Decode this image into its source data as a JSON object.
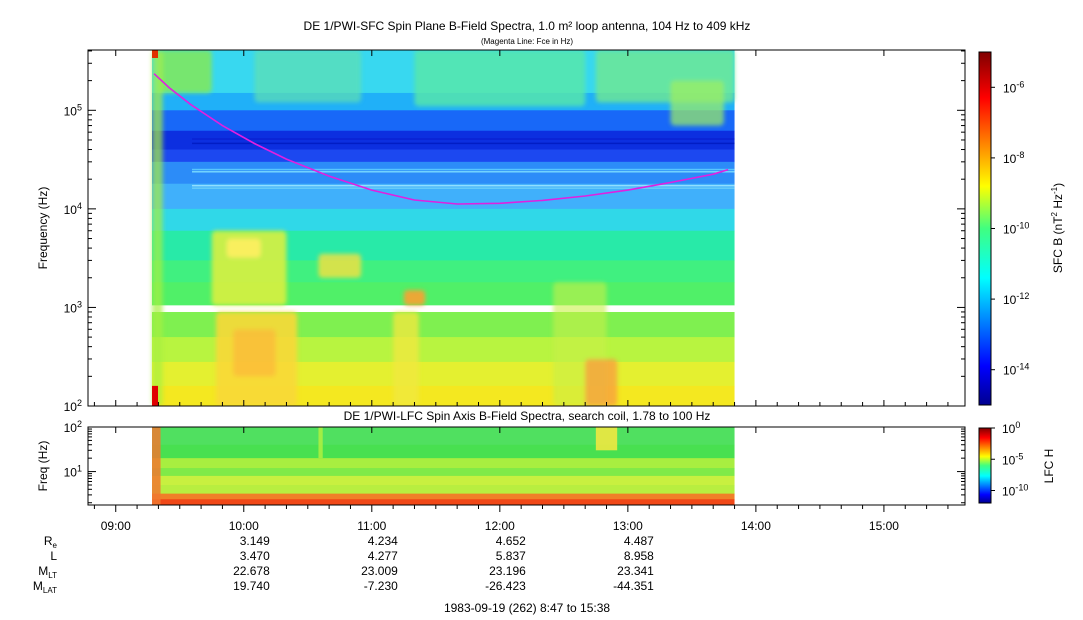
{
  "chart_data": [
    {
      "type": "heatmap",
      "title": "DE 1/PWI-SFC  Spin Plane B-Field Spectra, 1.0 m² loop antenna, 104 Hz to 409 kHz",
      "subtitle": "(Magenta Line: Fce in Hz)",
      "ylabel": "Frequency (Hz)",
      "yscale": "log",
      "ylim": [
        100,
        409000
      ],
      "yticks": [
        {
          "exp": "2",
          "value": 100
        },
        {
          "exp": "3",
          "value": 1000
        },
        {
          "exp": "4",
          "value": 10000
        },
        {
          "exp": "5",
          "value": 100000
        }
      ],
      "data_span": [
        "09:17",
        "13:50"
      ],
      "gap_hz": [
        900,
        1050
      ],
      "colorbar": {
        "label_main": "SFC B (nT",
        "label_sup1": "2",
        "label_mid": " Hz",
        "label_sup2": "-1",
        "label_end": ")",
        "scale": "log",
        "range": [
          1e-15,
          1e-05
        ],
        "ticks": [
          {
            "exp": "-6",
            "value": 1e-06
          },
          {
            "exp": "-8",
            "value": 1e-08
          },
          {
            "exp": "-10",
            "value": 1e-10
          },
          {
            "exp": "-12",
            "value": 1e-12
          },
          {
            "exp": "-14",
            "value": 1e-14
          }
        ]
      },
      "series": [
        {
          "name": "Fce",
          "color": "#e020e0",
          "x": [
            "09:18",
            "09:25",
            "09:35",
            "09:50",
            "10:05",
            "10:20",
            "10:40",
            "11:00",
            "11:20",
            "11:40",
            "12:00",
            "12:20",
            "12:40",
            "13:00",
            "13:20",
            "13:40",
            "13:47"
          ],
          "y": [
            235000,
            170000,
            115000,
            70000,
            46000,
            32000,
            21500,
            15500,
            12300,
            11200,
            11400,
            12200,
            13500,
            15500,
            18500,
            22500,
            25000
          ]
        }
      ]
    },
    {
      "type": "heatmap",
      "title": "DE 1/PWI-LFC  Spin Axis B-Field Spectra, search coil, 1.78 to 100 Hz",
      "ylabel": "Freq (Hz)",
      "yscale": "log",
      "ylim": [
        1.78,
        100
      ],
      "yticks": [
        {
          "exp": "1",
          "value": 10
        },
        {
          "exp": "2",
          "value": 100
        }
      ],
      "data_span": [
        "09:17",
        "13:50"
      ],
      "colorbar": {
        "label_main": "LFC H",
        "scale": "log",
        "range": [
          1e-12,
          1
        ],
        "ticks": [
          {
            "exp": "0",
            "value": 1
          },
          {
            "exp": "-5",
            "value": 1e-05
          },
          {
            "exp": "-10",
            "value": 1e-10
          }
        ]
      }
    }
  ],
  "xaxis": {
    "type": "time",
    "range": [
      "08:47",
      "15:38"
    ],
    "ticks": [
      "09:00",
      "10:00",
      "11:00",
      "12:00",
      "13:00",
      "14:00",
      "15:00"
    ]
  },
  "ephemeris": {
    "times": [
      "10:00",
      "11:00",
      "12:00",
      "13:00"
    ],
    "rows": [
      {
        "label": "R",
        "sub": "e",
        "values": [
          "3.149",
          "4.234",
          "4.652",
          "4.487"
        ]
      },
      {
        "label": "L",
        "sub": "",
        "values": [
          "3.470",
          "4.277",
          "5.837",
          "8.958"
        ]
      },
      {
        "label": "M",
        "sub": "LT",
        "values": [
          "22.678",
          "23.009",
          "23.196",
          "23.341"
        ]
      },
      {
        "label": "M",
        "sub": "LAT",
        "values": [
          "19.740",
          "-7.230",
          "-26.423",
          "-44.351"
        ]
      }
    ]
  },
  "footer": "1983-09-19 (262) 8:47 to 15:38"
}
